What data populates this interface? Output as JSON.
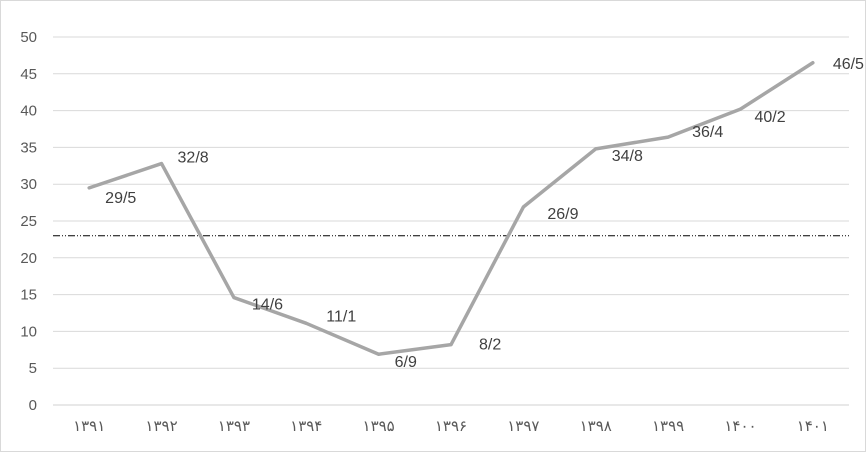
{
  "chart_data": {
    "type": "line",
    "title": "",
    "xlabel": "",
    "ylabel": "",
    "categories": [
      "۱۳۹۱",
      "۱۳۹۲",
      "۱۳۹۳",
      "۱۳۹۴",
      "۱۳۹۵",
      "۱۳۹۶",
      "۱۳۹۷",
      "۱۳۹۸",
      "۱۳۹۹",
      "۱۴۰۰",
      "۱۴۰۱"
    ],
    "series": [
      {
        "values": [
          29.5,
          32.8,
          14.6,
          11.1,
          6.9,
          8.2,
          26.9,
          34.8,
          36.4,
          40.2,
          46.5
        ],
        "labels": [
          "29/5",
          "32/8",
          "14/6",
          "11/1",
          "6/9",
          "8/2",
          "26/9",
          "34/8",
          "36/4",
          "40/2",
          "46/5"
        ],
        "color": "#a6a6a6"
      }
    ],
    "reference_line": {
      "value": 23,
      "style": "dash-dot",
      "color": "#000000"
    },
    "y_ticks": [
      "0",
      "5",
      "10",
      "15",
      "20",
      "25",
      "30",
      "35",
      "40",
      "45",
      "50"
    ],
    "ylim": [
      0,
      50
    ],
    "grid": true,
    "legend": "none"
  }
}
